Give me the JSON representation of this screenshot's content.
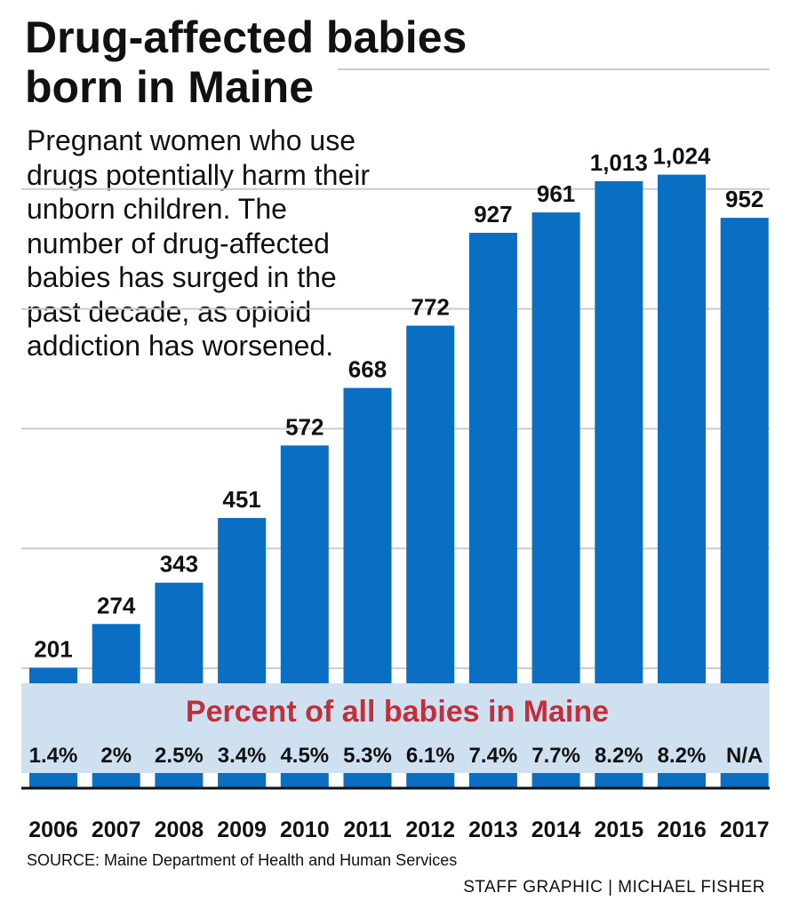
{
  "title": "Drug-affected babies born in Maine",
  "subtitle": "Pregnant women who use drugs potentially harm their unborn children. The number of drug-affected babies has surged in the past decade, as opioid addiction has worsened.",
  "source": "SOURCE: Maine Department of Health and Human Services",
  "credit": "STAFF GRAPHIC | MICHAEL FISHER",
  "percent_band_label": "Percent of all babies in Maine",
  "colors": {
    "bar": "#0a6fc2",
    "band": "#cfe0f1",
    "band_label": "#c0303a",
    "grid": "#cccccc",
    "text": "#111111"
  },
  "chart_data": {
    "type": "bar",
    "categories": [
      "2006",
      "2007",
      "2008",
      "2009",
      "2010",
      "2011",
      "2012",
      "2013",
      "2014",
      "2015",
      "2016",
      "2017"
    ],
    "values": [
      201,
      274,
      343,
      451,
      572,
      668,
      772,
      927,
      961,
      1013,
      1024,
      952
    ],
    "value_labels": [
      "201",
      "274",
      "343",
      "451",
      "572",
      "668",
      "772",
      "927",
      "961",
      "1,013",
      "1,024",
      "952"
    ],
    "percent_labels": [
      "1.4%",
      "2%",
      "2.5%",
      "3.4%",
      "4.5%",
      "5.3%",
      "6.1%",
      "7.4%",
      "7.7%",
      "8.2%",
      "8.2%",
      "N/A"
    ],
    "title": "Drug-affected babies born in Maine",
    "ylim": [
      0,
      1200
    ],
    "grid": true,
    "legend": "none"
  }
}
